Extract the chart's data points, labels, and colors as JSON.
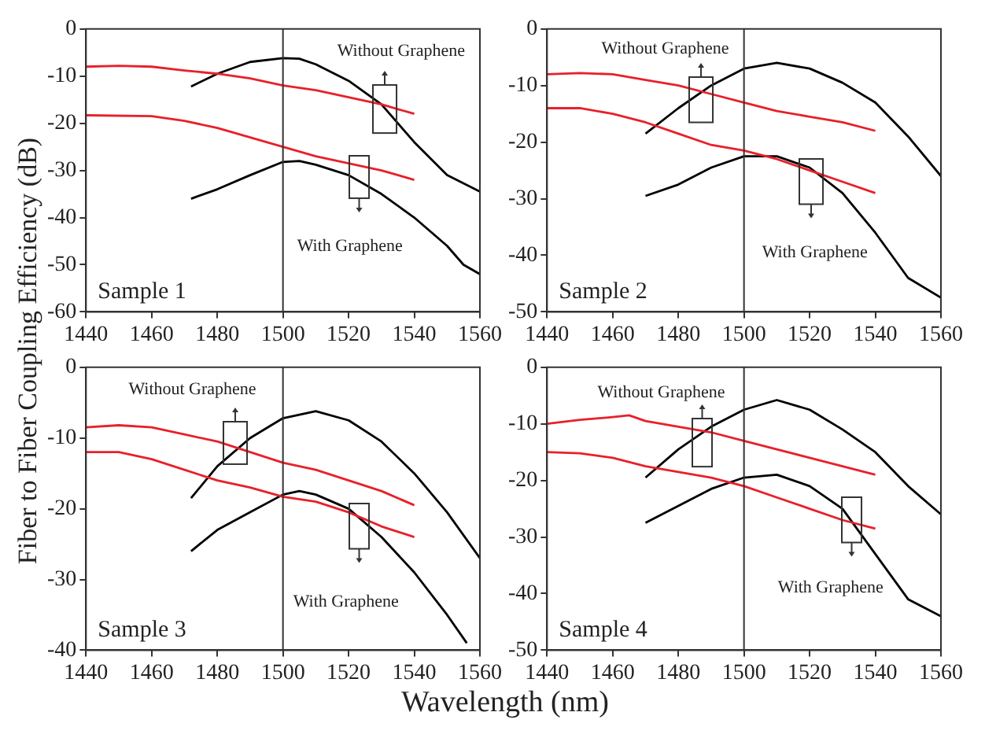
{
  "chart_data": [
    {
      "type": "line",
      "ylabel": "Fiber to Fiber Coupling Efficiency (dB)",
      "xlim": [
        1440,
        1560
      ],
      "xticks": [
        1440,
        1460,
        1480,
        1500,
        1520,
        1540,
        1560
      ],
      "ylim": [
        -60,
        0
      ],
      "yticks": [
        -60,
        -50,
        -40,
        -30,
        -20,
        -10,
        0
      ],
      "grid": false,
      "legend": false,
      "marker": "none",
      "ref_lines": [
        {
          "axis": "x",
          "value": 1500
        }
      ],
      "annotations": [
        "Without Graphene",
        "With Graphene",
        "Sample 1"
      ],
      "series": [
        {
          "color": "#e8202a",
          "x": [
            1440,
            1450,
            1460,
            1470,
            1480,
            1490,
            1500,
            1510,
            1520,
            1530,
            1540
          ],
          "values": [
            -8,
            -7.8,
            -8,
            -8.8,
            -9.5,
            -10.5,
            -12,
            -13,
            -14.5,
            -16,
            -18
          ]
        },
        {
          "color": "#e8202a",
          "x": [
            1440,
            1460,
            1470,
            1480,
            1490,
            1500,
            1510,
            1520,
            1530,
            1540
          ],
          "values": [
            -18.3,
            -18.5,
            -19.5,
            -21,
            -23,
            -25,
            -27,
            -28.5,
            -30,
            -32
          ]
        },
        {
          "color": "#000000",
          "x": [
            1472,
            1480,
            1490,
            1500,
            1505,
            1510,
            1520,
            1530,
            1540,
            1550,
            1560
          ],
          "values": [
            -12.2,
            -9.5,
            -7,
            -6.2,
            -6.3,
            -7.5,
            -11,
            -16,
            -24,
            -31,
            -34.5
          ]
        },
        {
          "color": "#000000",
          "x": [
            1472,
            1480,
            1490,
            1500,
            1505,
            1510,
            1520,
            1530,
            1540,
            1550,
            1555,
            1560
          ],
          "values": [
            -36,
            -34,
            -31,
            -28.2,
            -28,
            -28.8,
            -31,
            -35,
            -40,
            -46,
            -50,
            -52
          ]
        }
      ]
    },
    {
      "type": "line",
      "xlim": [
        1440,
        1560
      ],
      "xticks": [
        1440,
        1460,
        1480,
        1500,
        1520,
        1540,
        1560
      ],
      "ylim": [
        -50,
        0
      ],
      "yticks": [
        -50,
        -40,
        -30,
        -20,
        -10,
        0
      ],
      "grid": false,
      "legend": false,
      "marker": "none",
      "ref_lines": [
        {
          "axis": "x",
          "value": 1500
        }
      ],
      "annotations": [
        "Without Graphene",
        "With Graphene",
        "Sample 2"
      ],
      "series": [
        {
          "color": "#e8202a",
          "x": [
            1440,
            1450,
            1460,
            1470,
            1480,
            1490,
            1500,
            1510,
            1520,
            1530,
            1540
          ],
          "values": [
            -8,
            -7.8,
            -8,
            -9,
            -10,
            -11.5,
            -13,
            -14.5,
            -15.5,
            -16.5,
            -18
          ]
        },
        {
          "color": "#e8202a",
          "x": [
            1440,
            1450,
            1460,
            1470,
            1480,
            1490,
            1500,
            1510,
            1520,
            1530,
            1540
          ],
          "values": [
            -14,
            -14,
            -15,
            -16.5,
            -18.5,
            -20.5,
            -21.5,
            -23,
            -25,
            -27,
            -29
          ]
        },
        {
          "color": "#000000",
          "x": [
            1470,
            1480,
            1490,
            1500,
            1510,
            1520,
            1530,
            1540,
            1550,
            1560
          ],
          "values": [
            -18.5,
            -14,
            -10,
            -7,
            -6,
            -7,
            -9.5,
            -13,
            -19,
            -26
          ]
        },
        {
          "color": "#000000",
          "x": [
            1470,
            1480,
            1490,
            1500,
            1510,
            1520,
            1530,
            1540,
            1550,
            1560
          ],
          "values": [
            -29.5,
            -27.5,
            -24.5,
            -22.5,
            -22.5,
            -24.5,
            -29,
            -36,
            -44,
            -47.5
          ]
        }
      ]
    },
    {
      "type": "line",
      "xlabel": "Wavelength (nm)",
      "xlim": [
        1440,
        1560
      ],
      "xticks": [
        1440,
        1460,
        1480,
        1500,
        1520,
        1540,
        1560
      ],
      "ylim": [
        -40,
        0
      ],
      "yticks": [
        -40,
        -30,
        -20,
        -10,
        0
      ],
      "grid": false,
      "legend": false,
      "marker": "none",
      "ref_lines": [
        {
          "axis": "x",
          "value": 1500
        }
      ],
      "annotations": [
        "Without Graphene",
        "With Graphene",
        "Sample 3"
      ],
      "series": [
        {
          "color": "#e8202a",
          "x": [
            1440,
            1450,
            1460,
            1470,
            1480,
            1490,
            1500,
            1510,
            1520,
            1530,
            1540
          ],
          "values": [
            -8.5,
            -8.2,
            -8.5,
            -9.5,
            -10.5,
            -12,
            -13.5,
            -14.5,
            -16,
            -17.5,
            -19.5
          ]
        },
        {
          "color": "#e8202a",
          "x": [
            1440,
            1450,
            1460,
            1470,
            1480,
            1490,
            1500,
            1510,
            1520,
            1530,
            1540
          ],
          "values": [
            -12,
            -12,
            -13,
            -14.5,
            -16,
            -17,
            -18.3,
            -19,
            -20.5,
            -22.5,
            -24
          ]
        },
        {
          "color": "#000000",
          "x": [
            1472,
            1480,
            1490,
            1500,
            1510,
            1520,
            1530,
            1540,
            1550,
            1560
          ],
          "values": [
            -18.5,
            -14,
            -10,
            -7.2,
            -6.2,
            -7.5,
            -10.5,
            -15,
            -20.5,
            -27
          ]
        },
        {
          "color": "#000000",
          "x": [
            1472,
            1480,
            1490,
            1500,
            1505,
            1510,
            1520,
            1530,
            1540,
            1550,
            1556
          ],
          "values": [
            -26,
            -23,
            -20.5,
            -18,
            -17.5,
            -18,
            -20,
            -24,
            -29,
            -35,
            -39
          ]
        }
      ]
    },
    {
      "type": "line",
      "xlim": [
        1440,
        1560
      ],
      "xticks": [
        1440,
        1460,
        1480,
        1500,
        1520,
        1540,
        1560
      ],
      "ylim": [
        -50,
        0
      ],
      "yticks": [
        -50,
        -40,
        -30,
        -20,
        -10,
        0
      ],
      "grid": false,
      "legend": false,
      "marker": "none",
      "ref_lines": [
        {
          "axis": "x",
          "value": 1500
        }
      ],
      "annotations": [
        "Without Graphene",
        "With Graphene",
        "Sample 4"
      ],
      "series": [
        {
          "color": "#e8202a",
          "x": [
            1440,
            1450,
            1460,
            1465,
            1470,
            1480,
            1490,
            1500,
            1510,
            1520,
            1530,
            1540
          ],
          "values": [
            -10,
            -9.3,
            -8.8,
            -8.5,
            -9.5,
            -10.5,
            -11.5,
            -13,
            -14.5,
            -16,
            -17.5,
            -19
          ]
        },
        {
          "color": "#e8202a",
          "x": [
            1440,
            1450,
            1460,
            1470,
            1480,
            1490,
            1500,
            1510,
            1520,
            1530,
            1540
          ],
          "values": [
            -15,
            -15.2,
            -16,
            -17.5,
            -18.5,
            -19.5,
            -21,
            -23,
            -25,
            -27,
            -28.5
          ]
        },
        {
          "color": "#000000",
          "x": [
            1470,
            1480,
            1490,
            1500,
            1510,
            1520,
            1530,
            1540,
            1550,
            1560
          ],
          "values": [
            -19.5,
            -14.5,
            -10.5,
            -7.5,
            -5.8,
            -7.5,
            -11,
            -15,
            -21,
            -26
          ]
        },
        {
          "color": "#000000",
          "x": [
            1470,
            1480,
            1490,
            1500,
            1510,
            1520,
            1530,
            1540,
            1550,
            1560
          ],
          "values": [
            -27.5,
            -24.5,
            -21.5,
            -19.5,
            -19,
            -21,
            -25,
            -33,
            -41,
            -44
          ]
        }
      ]
    }
  ]
}
